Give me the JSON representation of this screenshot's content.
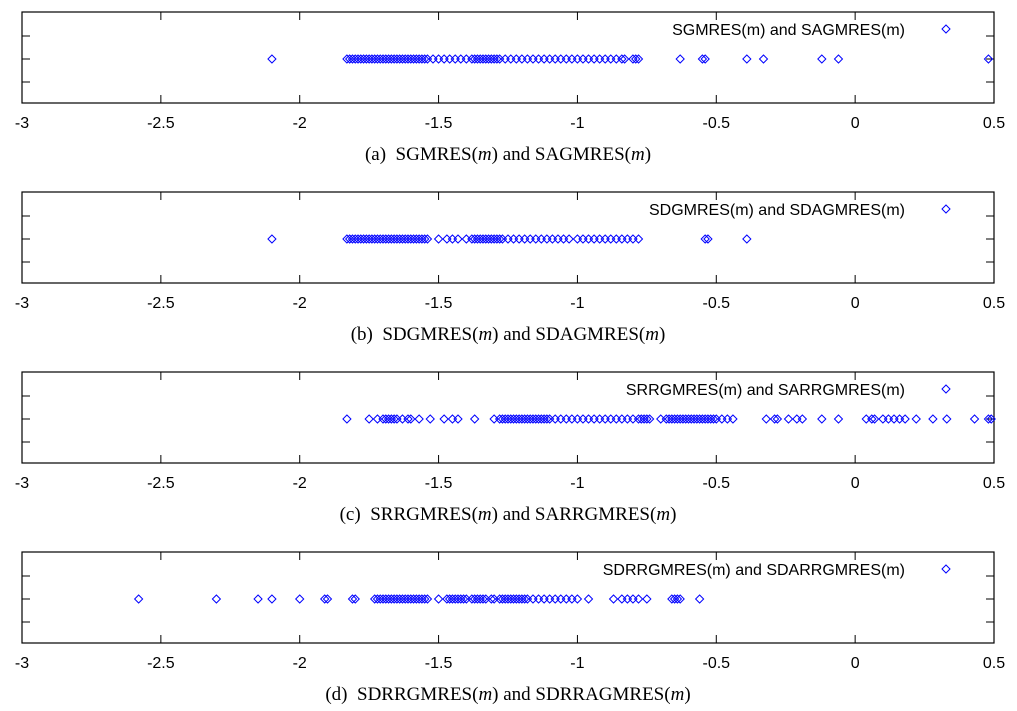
{
  "chart_data": [
    {
      "type": "scatter",
      "caption": {
        "prefix": "(a)",
        "parts": [
          [
            "SGMRES(",
            false
          ],
          [
            "m",
            true
          ],
          [
            ") and SAGMRES(",
            false
          ],
          [
            "m",
            true
          ],
          [
            ")",
            false
          ]
        ]
      },
      "xlim": [
        -3,
        0.5
      ],
      "xticks": [
        "-3",
        "-2.5",
        "-2",
        "-1.5",
        "-1",
        "-0.5",
        "0",
        "0.5"
      ],
      "xtick_values": [
        -3,
        -2.5,
        -2,
        -1.5,
        -1,
        -0.5,
        0,
        0.5
      ],
      "series": [
        {
          "name": "SGMRES(m) and SAGMRES(m)",
          "color": "#0000ff",
          "marker": "diamond",
          "y": 0,
          "x": [
            -2.1,
            -1.83,
            -1.82,
            -1.81,
            -1.8,
            -1.79,
            -1.78,
            -1.77,
            -1.76,
            -1.75,
            -1.74,
            -1.73,
            -1.72,
            -1.71,
            -1.7,
            -1.69,
            -1.68,
            -1.67,
            -1.66,
            -1.65,
            -1.64,
            -1.63,
            -1.62,
            -1.61,
            -1.6,
            -1.59,
            -1.58,
            -1.57,
            -1.56,
            -1.55,
            -1.54,
            -1.52,
            -1.5,
            -1.48,
            -1.46,
            -1.44,
            -1.42,
            -1.4,
            -1.38,
            -1.37,
            -1.36,
            -1.35,
            -1.34,
            -1.33,
            -1.32,
            -1.31,
            -1.3,
            -1.29,
            -1.28,
            -1.26,
            -1.24,
            -1.22,
            -1.2,
            -1.18,
            -1.16,
            -1.14,
            -1.12,
            -1.1,
            -1.08,
            -1.06,
            -1.04,
            -1.02,
            -1.0,
            -0.98,
            -0.96,
            -0.94,
            -0.92,
            -0.9,
            -0.88,
            -0.86,
            -0.84,
            -0.83,
            -0.8,
            -0.79,
            -0.78,
            -0.63,
            -0.55,
            -0.54,
            -0.39,
            -0.33,
            -0.12,
            -0.06,
            0.48
          ]
        }
      ]
    },
    {
      "type": "scatter",
      "caption": {
        "prefix": "(b)",
        "parts": [
          [
            "SDGMRES(",
            false
          ],
          [
            "m",
            true
          ],
          [
            ") and SDAGMRES(",
            false
          ],
          [
            "m",
            true
          ],
          [
            ")",
            false
          ]
        ]
      },
      "xlim": [
        -3,
        0.5
      ],
      "xticks": [
        "-3",
        "-2.5",
        "-2",
        "-1.5",
        "-1",
        "-0.5",
        "0",
        "0.5"
      ],
      "xtick_values": [
        -3,
        -2.5,
        -2,
        -1.5,
        -1,
        -0.5,
        0,
        0.5
      ],
      "series": [
        {
          "name": "SDGMRES(m) and SDAGMRES(m)",
          "color": "#0000ff",
          "marker": "diamond",
          "y": 0,
          "x": [
            -2.1,
            -1.83,
            -1.82,
            -1.81,
            -1.8,
            -1.79,
            -1.78,
            -1.77,
            -1.76,
            -1.75,
            -1.74,
            -1.73,
            -1.72,
            -1.71,
            -1.7,
            -1.69,
            -1.68,
            -1.67,
            -1.66,
            -1.65,
            -1.64,
            -1.63,
            -1.62,
            -1.61,
            -1.6,
            -1.59,
            -1.58,
            -1.57,
            -1.56,
            -1.55,
            -1.54,
            -1.5,
            -1.47,
            -1.45,
            -1.43,
            -1.4,
            -1.38,
            -1.37,
            -1.36,
            -1.35,
            -1.34,
            -1.33,
            -1.32,
            -1.31,
            -1.3,
            -1.29,
            -1.28,
            -1.27,
            -1.25,
            -1.23,
            -1.21,
            -1.19,
            -1.17,
            -1.15,
            -1.13,
            -1.11,
            -1.09,
            -1.07,
            -1.05,
            -1.03,
            -1.0,
            -0.98,
            -0.96,
            -0.94,
            -0.92,
            -0.9,
            -0.88,
            -0.86,
            -0.84,
            -0.82,
            -0.8,
            -0.78,
            -0.54,
            -0.53,
            -0.39
          ]
        }
      ]
    },
    {
      "type": "scatter",
      "caption": {
        "prefix": "(c)",
        "parts": [
          [
            "SRRGMRES(",
            false
          ],
          [
            "m",
            true
          ],
          [
            ") and SARRGMRES(",
            false
          ],
          [
            "m",
            true
          ],
          [
            ")",
            false
          ]
        ]
      },
      "xlim": [
        -3,
        0.5
      ],
      "xticks": [
        "-3",
        "-2.5",
        "-2",
        "-1.5",
        "-1",
        "-0.5",
        "0",
        "0.5"
      ],
      "xtick_values": [
        -3,
        -2.5,
        -2,
        -1.5,
        -1,
        -0.5,
        0,
        0.5
      ],
      "series": [
        {
          "name": "SRRGMRES(m) and SARRGMRES(m)",
          "color": "#0000ff",
          "marker": "diamond",
          "y": 0,
          "x": [
            -1.83,
            -1.75,
            -1.72,
            -1.7,
            -1.69,
            -1.68,
            -1.67,
            -1.66,
            -1.65,
            -1.63,
            -1.61,
            -1.6,
            -1.57,
            -1.53,
            -1.48,
            -1.45,
            -1.43,
            -1.37,
            -1.3,
            -1.28,
            -1.27,
            -1.26,
            -1.25,
            -1.24,
            -1.23,
            -1.22,
            -1.21,
            -1.2,
            -1.19,
            -1.18,
            -1.17,
            -1.16,
            -1.15,
            -1.14,
            -1.13,
            -1.12,
            -1.11,
            -1.1,
            -1.08,
            -1.06,
            -1.04,
            -1.02,
            -1.0,
            -0.98,
            -0.96,
            -0.94,
            -0.92,
            -0.9,
            -0.88,
            -0.86,
            -0.84,
            -0.82,
            -0.8,
            -0.78,
            -0.77,
            -0.76,
            -0.75,
            -0.74,
            -0.7,
            -0.68,
            -0.67,
            -0.66,
            -0.65,
            -0.64,
            -0.63,
            -0.62,
            -0.61,
            -0.6,
            -0.59,
            -0.58,
            -0.57,
            -0.56,
            -0.55,
            -0.54,
            -0.53,
            -0.52,
            -0.51,
            -0.5,
            -0.48,
            -0.46,
            -0.44,
            -0.32,
            -0.29,
            -0.28,
            -0.24,
            -0.21,
            -0.19,
            -0.12,
            -0.06,
            0.04,
            0.06,
            0.07,
            0.1,
            0.12,
            0.14,
            0.16,
            0.18,
            0.22,
            0.28,
            0.33,
            0.43,
            0.48,
            0.49
          ]
        }
      ]
    },
    {
      "type": "scatter",
      "caption": {
        "prefix": "(d)",
        "parts": [
          [
            "SDRRGMRES(",
            false
          ],
          [
            "m",
            true
          ],
          [
            ") and SDRRAGMRES(",
            false
          ],
          [
            "m",
            true
          ],
          [
            ")",
            false
          ]
        ]
      },
      "xlim": [
        -3,
        0.5
      ],
      "xticks": [
        "-3",
        "-2.5",
        "-2",
        "-1.5",
        "-1",
        "-0.5",
        "0",
        "0.5"
      ],
      "xtick_values": [
        -3,
        -2.5,
        -2,
        -1.5,
        -1,
        -0.5,
        0,
        0.5
      ],
      "series": [
        {
          "name": "SDRRGMRES(m) and SDARRGMRES(m)",
          "color": "#0000ff",
          "marker": "diamond",
          "y": 0,
          "x": [
            -2.58,
            -2.3,
            -2.15,
            -2.1,
            -2.0,
            -1.91,
            -1.9,
            -1.81,
            -1.8,
            -1.73,
            -1.72,
            -1.71,
            -1.7,
            -1.69,
            -1.68,
            -1.67,
            -1.66,
            -1.65,
            -1.64,
            -1.63,
            -1.62,
            -1.61,
            -1.6,
            -1.59,
            -1.58,
            -1.57,
            -1.56,
            -1.55,
            -1.54,
            -1.5,
            -1.47,
            -1.46,
            -1.45,
            -1.44,
            -1.43,
            -1.42,
            -1.41,
            -1.4,
            -1.38,
            -1.37,
            -1.36,
            -1.35,
            -1.34,
            -1.33,
            -1.31,
            -1.3,
            -1.28,
            -1.27,
            -1.26,
            -1.25,
            -1.24,
            -1.23,
            -1.22,
            -1.21,
            -1.2,
            -1.19,
            -1.18,
            -1.16,
            -1.14,
            -1.12,
            -1.1,
            -1.08,
            -1.06,
            -1.04,
            -1.02,
            -1.0,
            -0.96,
            -0.87,
            -0.84,
            -0.82,
            -0.8,
            -0.78,
            -0.75,
            -0.66,
            -0.65,
            -0.64,
            -0.63,
            -0.56
          ]
        }
      ]
    }
  ]
}
